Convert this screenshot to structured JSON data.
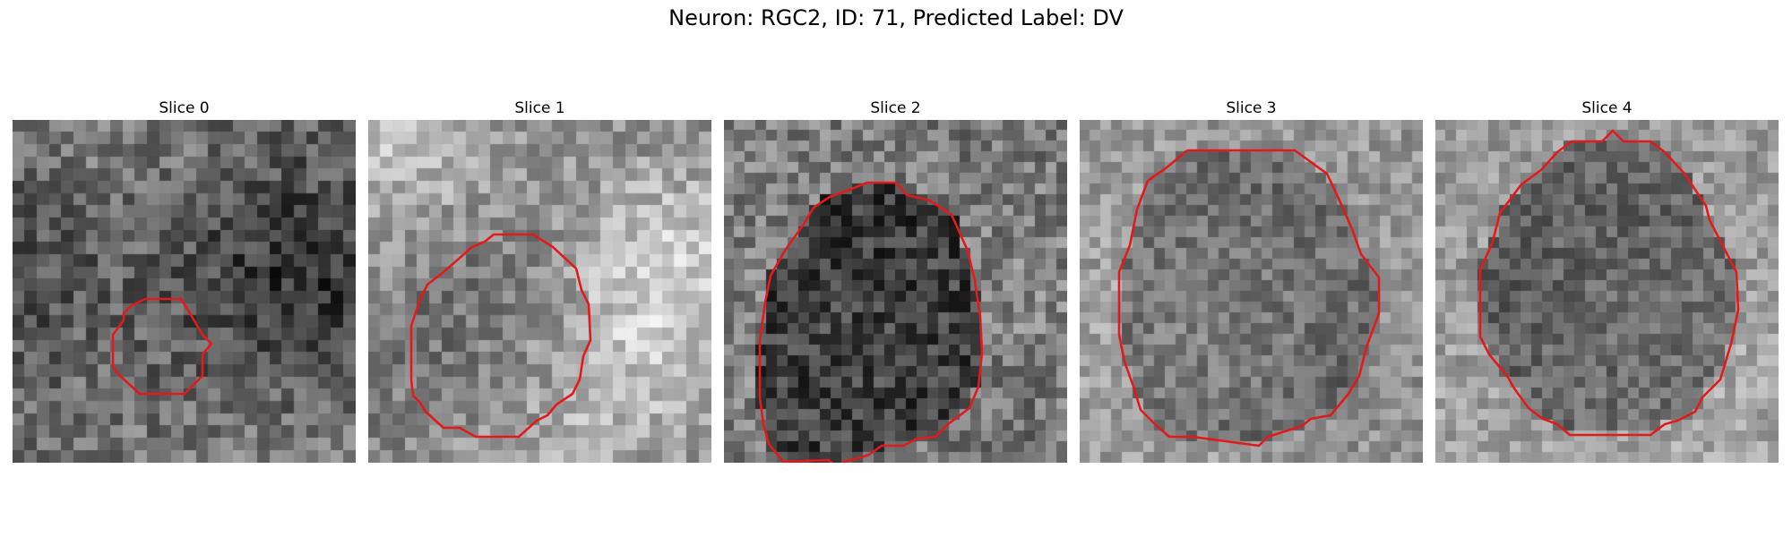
{
  "figure": {
    "title": "Neuron: RGC2, ID: 71, Predicted Label: DV"
  },
  "panels": [
    {
      "title": "Slice 0"
    },
    {
      "title": "Slice 1"
    },
    {
      "title": "Slice 2"
    },
    {
      "title": "Slice 3"
    },
    {
      "title": "Slice 4"
    }
  ],
  "colors": {
    "contour": "#e31a1c",
    "background": "#ffffff"
  }
}
